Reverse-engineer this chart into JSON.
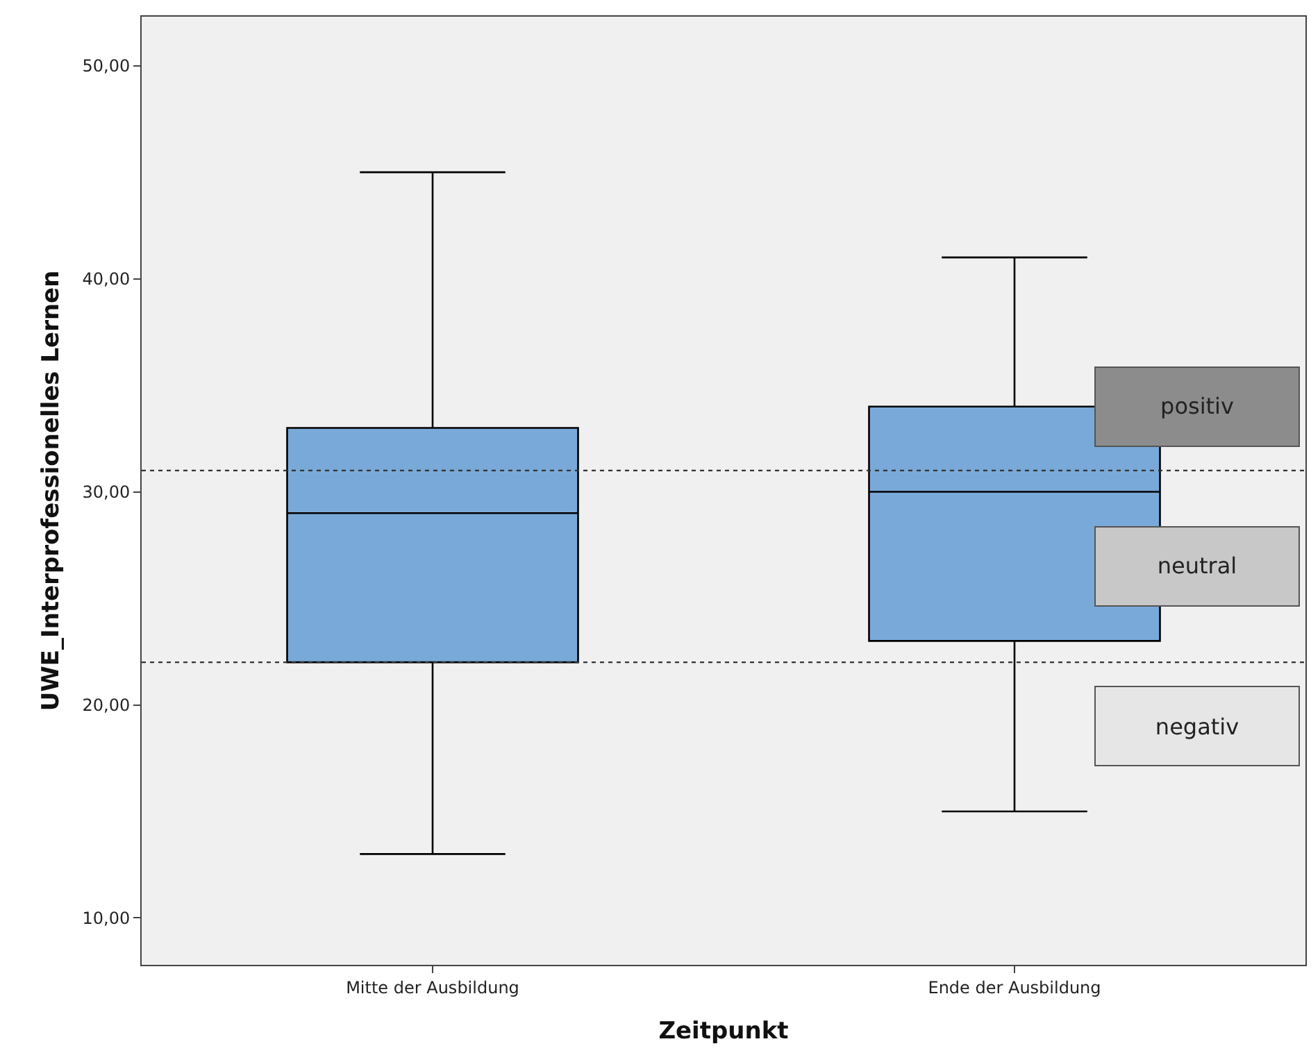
{
  "chart_data": {
    "type": "box",
    "xlabel": "Zeitpunkt",
    "ylabel": "UWE_Interprofessionelles Lernen",
    "categories": [
      "Mitte der Ausbildung",
      "Ende der Ausbildung"
    ],
    "boxes": [
      {
        "low": 13,
        "q1": 22,
        "median": 29,
        "q3": 33,
        "high": 45
      },
      {
        "low": 15,
        "q1": 23,
        "median": 30,
        "q3": 34,
        "high": 41
      }
    ],
    "color": "#79a9d8",
    "ylim": [
      7.8,
      52.3
    ],
    "yticks": [
      {
        "value": 10,
        "label": "10,00"
      },
      {
        "value": 20,
        "label": "20,00"
      },
      {
        "value": 30,
        "label": "30,00"
      },
      {
        "value": 40,
        "label": "40,00"
      },
      {
        "value": 50,
        "label": "50,00"
      }
    ],
    "ref_lines": [
      {
        "axis": "y",
        "value": 31,
        "line_style": "dotted",
        "color": "#333333"
      },
      {
        "axis": "y",
        "value": 22,
        "line_style": "dotted",
        "color": "#333333"
      }
    ],
    "annotations": [
      "positiv",
      "neutral",
      "negativ"
    ],
    "grid": false
  }
}
